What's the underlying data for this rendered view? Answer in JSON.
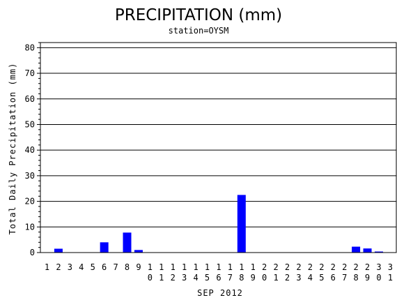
{
  "chart_data": {
    "type": "bar",
    "title": "PRECIPITATION (mm)",
    "subtitle": "station=OYSM",
    "xlabel": "SEP 2012",
    "ylabel": "Total Daily Precipitation (mm)",
    "ylim": [
      0,
      82
    ],
    "yticks": [
      0,
      10,
      20,
      30,
      40,
      50,
      60,
      70,
      80
    ],
    "grid": true,
    "bar_color": "#0000ff",
    "categories": [
      "1",
      "2",
      "3",
      "4",
      "5",
      "6",
      "7",
      "8",
      "9",
      "10",
      "11",
      "12",
      "13",
      "14",
      "15",
      "16",
      "17",
      "18",
      "19",
      "20",
      "21",
      "22",
      "23",
      "24",
      "25",
      "26",
      "27",
      "28",
      "29",
      "30",
      "31"
    ],
    "values": [
      0,
      1.5,
      0,
      0,
      0,
      4,
      0,
      7.8,
      1,
      0,
      0,
      0,
      0,
      0,
      0,
      0,
      0,
      22.5,
      0,
      0,
      0,
      0,
      0,
      0,
      0,
      0,
      0,
      2.3,
      1.6,
      0.4,
      0
    ]
  }
}
